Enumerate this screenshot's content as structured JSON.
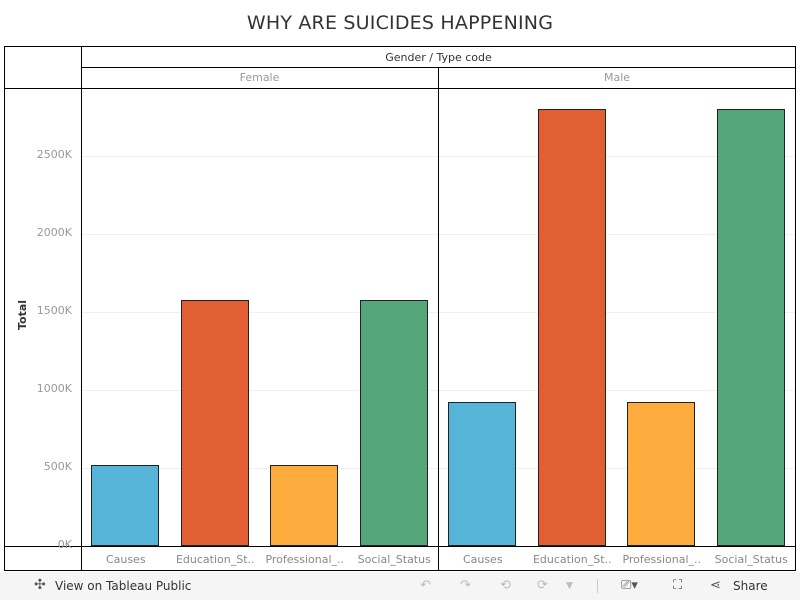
{
  "chart_data": {
    "type": "bar",
    "title": "WHY ARE SUICIDES HAPPENING",
    "column_header": "Gender / Type code",
    "ylabel": "Total",
    "ylim": [
      0,
      2900000
    ],
    "yticks": [
      0,
      500000,
      1000000,
      1500000,
      2000000,
      2500000
    ],
    "ytick_labels": [
      "0K",
      "500K",
      "1000K",
      "1500K",
      "2000K",
      "2500K"
    ],
    "grid": true,
    "panes": [
      {
        "name": "Female",
        "categories": [
          "Causes",
          "Education_St..",
          "Professional_..",
          "Social_Status"
        ],
        "values": [
          519000,
          1577000,
          519000,
          1577000
        ]
      },
      {
        "name": "Male",
        "categories": [
          "Causes",
          "Education_St..",
          "Professional_..",
          "Social_Status"
        ],
        "values": [
          923000,
          2801000,
          923000,
          2801000
        ]
      }
    ],
    "colors": [
      "#56b4d9",
      "#e15f32",
      "#fcac3c",
      "#55a77b"
    ]
  },
  "toolbar": {
    "view_label": "View on Tableau Public",
    "share_label": "Share"
  }
}
